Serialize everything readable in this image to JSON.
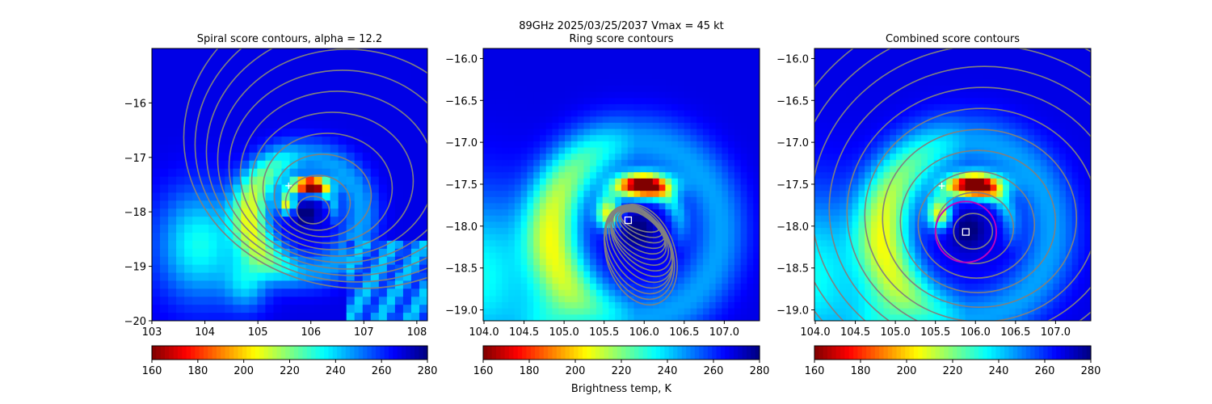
{
  "suptitle": "89GHz  2025/03/25/2037    Vmax = 45 kt",
  "colors": {
    "contour": "#808080",
    "marker": "#ffffff",
    "circle": "#c000c0"
  },
  "chart_data": [
    {
      "type": "heatmap",
      "title": "Spiral score contours, alpha = 12.2",
      "xlim": [
        103.0,
        108.2
      ],
      "ylim": [
        -20.0,
        -15.0
      ],
      "xticks": [
        103,
        104,
        105,
        106,
        107,
        108
      ],
      "xtick_labels": [
        "103",
        "104",
        "105",
        "106",
        "107",
        "108"
      ],
      "yticks": [
        -16,
        -17,
        -18,
        -19,
        -20
      ],
      "ytick_labels": [
        "−16",
        "−17",
        "−18",
        "−19",
        "−20"
      ],
      "plus_marker": [
        105.58,
        -17.52
      ],
      "colorbar": {
        "range": [
          160,
          280
        ],
        "ticks": [
          "160",
          "180",
          "200",
          "220",
          "240",
          "260",
          "280"
        ],
        "label": ""
      }
    },
    {
      "type": "heatmap",
      "title": "Ring score contours",
      "xlim": [
        103.99,
        107.44
      ],
      "ylim": [
        -19.13,
        -15.88
      ],
      "xticks": [
        104.0,
        104.5,
        105.0,
        105.5,
        106.0,
        106.5,
        107.0
      ],
      "xtick_labels": [
        "104.0",
        "104.5",
        "105.0",
        "105.5",
        "106.0",
        "106.5",
        "107.0"
      ],
      "yticks": [
        -16.0,
        -16.5,
        -17.0,
        -17.5,
        -18.0,
        -18.5,
        -19.0
      ],
      "ytick_labels": [
        "−16.0",
        "−16.5",
        "−17.0",
        "−17.5",
        "−18.0",
        "−18.5",
        "−19.0"
      ],
      "square_marker": [
        105.8,
        -17.93
      ],
      "colorbar": {
        "range": [
          160,
          280
        ],
        "ticks": [
          "160",
          "180",
          "200",
          "220",
          "240",
          "260",
          "280"
        ],
        "label": "Brightness temp, K"
      }
    },
    {
      "type": "heatmap",
      "title": "Combined score contours",
      "xlim": [
        103.99,
        107.44
      ],
      "ylim": [
        -19.13,
        -15.88
      ],
      "xticks": [
        104.0,
        104.5,
        105.0,
        105.5,
        106.0,
        106.5,
        107.0
      ],
      "xtick_labels": [
        "104.0",
        "104.5",
        "105.0",
        "105.5",
        "106.0",
        "106.5",
        "107.0"
      ],
      "yticks": [
        -16.0,
        -16.5,
        -17.0,
        -17.5,
        -18.0,
        -18.5,
        -19.0
      ],
      "ytick_labels": [
        "−16.0",
        "−16.5",
        "−17.0",
        "−17.5",
        "−18.0",
        "−18.5",
        "−19.0"
      ],
      "plus_marker": [
        105.58,
        -17.52
      ],
      "square_marker": [
        105.88,
        -18.07
      ],
      "circle": {
        "center": [
          105.88,
          -18.07
        ],
        "radius_deg": 0.38
      },
      "colorbar": {
        "range": [
          160,
          280
        ],
        "ticks": [
          "160",
          "180",
          "200",
          "220",
          "240",
          "260",
          "280"
        ],
        "label": ""
      }
    }
  ]
}
